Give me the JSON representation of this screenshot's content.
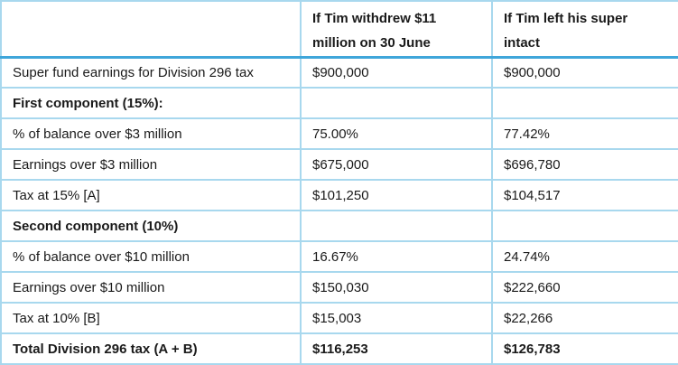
{
  "table": {
    "title_semantic": "Division 296 tax comparison table",
    "header": {
      "label_column": "",
      "scenario_withdrew": "If Tim withdrew $11 million on 30 June",
      "scenario_intact": "If Tim left his super intact"
    },
    "rows": [
      {
        "label": "Super fund earnings for Division 296 tax",
        "withdrew": "$900,000",
        "intact": "$900,000"
      },
      {
        "label": "First component (15%):",
        "withdrew": "",
        "intact": ""
      },
      {
        "label": "% of balance over $3 million",
        "withdrew": "75.00%",
        "intact": "77.42%"
      },
      {
        "label": "Earnings over $3 million",
        "withdrew": "$675,000",
        "intact": "$696,780"
      },
      {
        "label": "Tax at 15% [A]",
        "withdrew": "$101,250",
        "intact": "$104,517"
      },
      {
        "label": "Second component (10%)",
        "withdrew": "",
        "intact": ""
      },
      {
        "label": "% of balance over $10 million",
        "withdrew": "16.67%",
        "intact": "24.74%"
      },
      {
        "label": "Earnings over $10 million",
        "withdrew": "$150,030",
        "intact": "$222,660"
      },
      {
        "label": "Tax at 10% [B]",
        "withdrew": "$15,003",
        "intact": "$22,266"
      },
      {
        "label": "Total Division 296 tax (A + B)",
        "withdrew": "$116,253",
        "intact": "$126,783"
      }
    ],
    "colors": {
      "border_light": "#a8d8ee",
      "border_strong": "#3fa6da",
      "text": "#1a1a1a",
      "background": "#ffffff"
    }
  }
}
